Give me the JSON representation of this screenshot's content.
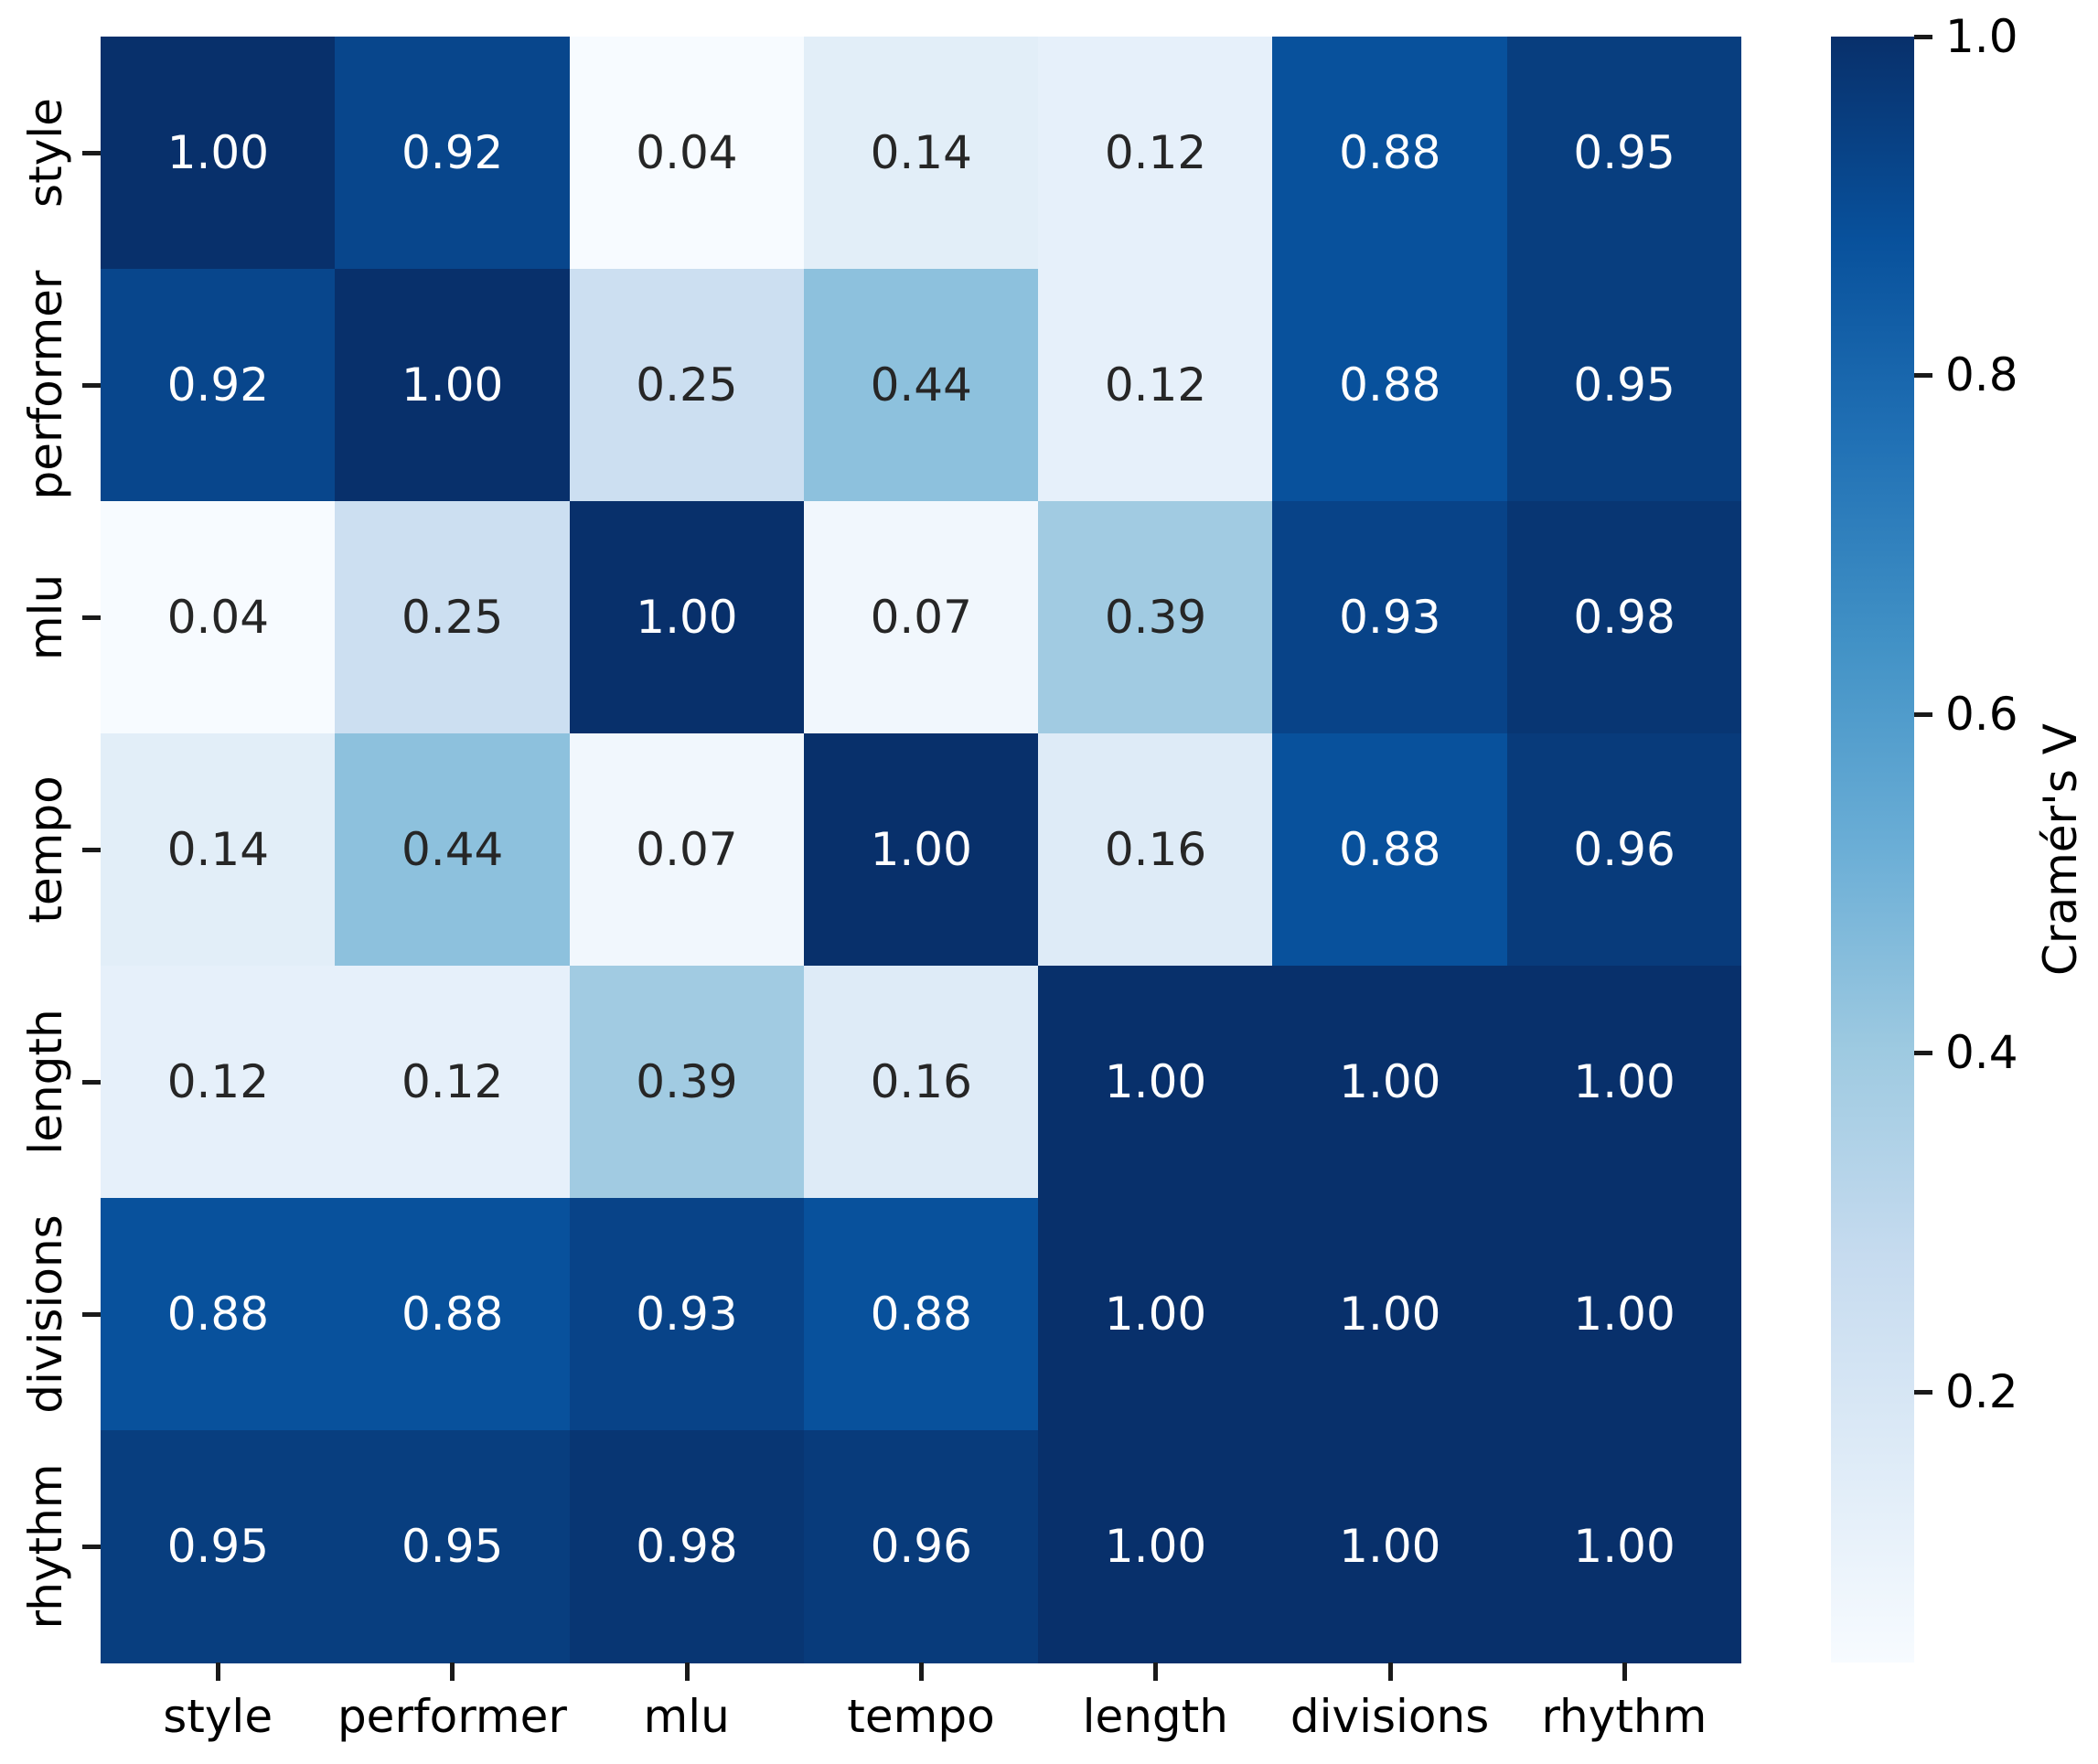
{
  "chart_data": {
    "type": "heatmap",
    "title": "",
    "categories": [
      "style",
      "performer",
      "mlu",
      "tempo",
      "length",
      "divisions",
      "rhythm"
    ],
    "matrix": [
      [
        1.0,
        0.92,
        0.04,
        0.14,
        0.12,
        0.88,
        0.95
      ],
      [
        0.92,
        1.0,
        0.25,
        0.44,
        0.12,
        0.88,
        0.95
      ],
      [
        0.04,
        0.25,
        1.0,
        0.07,
        0.39,
        0.93,
        0.98
      ],
      [
        0.14,
        0.44,
        0.07,
        1.0,
        0.16,
        0.88,
        0.96
      ],
      [
        0.12,
        0.12,
        0.39,
        0.16,
        1.0,
        1.0,
        1.0
      ],
      [
        0.88,
        0.88,
        0.93,
        0.88,
        1.0,
        1.0,
        1.0
      ],
      [
        0.95,
        0.95,
        0.98,
        0.96,
        1.0,
        1.0,
        1.0
      ]
    ],
    "value_decimals": 2,
    "vmin": 0.04,
    "vmax": 1.0,
    "colormap_name": "Blues",
    "colormap_anchors": [
      "#f7fbff",
      "#deebf7",
      "#c6dbef",
      "#9ecae1",
      "#6baed6",
      "#4292c6",
      "#2171b5",
      "#08519c",
      "#08306b"
    ],
    "annotation_colors": {
      "on_dark": "#ffffff",
      "on_light": "#262626"
    },
    "white_text_min_value": 0.85,
    "colorbar": {
      "label": "Cramér's V",
      "tick_labels": [
        "1.0",
        "0.8",
        "0.6",
        "0.4",
        "0.2"
      ],
      "tick_values": [
        1.0,
        0.8,
        0.6,
        0.4,
        0.2
      ]
    },
    "layout_hints": {
      "grid": "off",
      "legend": "colorbar-right",
      "x_tick_rotation": 0,
      "y_tick_rotation": 90
    }
  }
}
